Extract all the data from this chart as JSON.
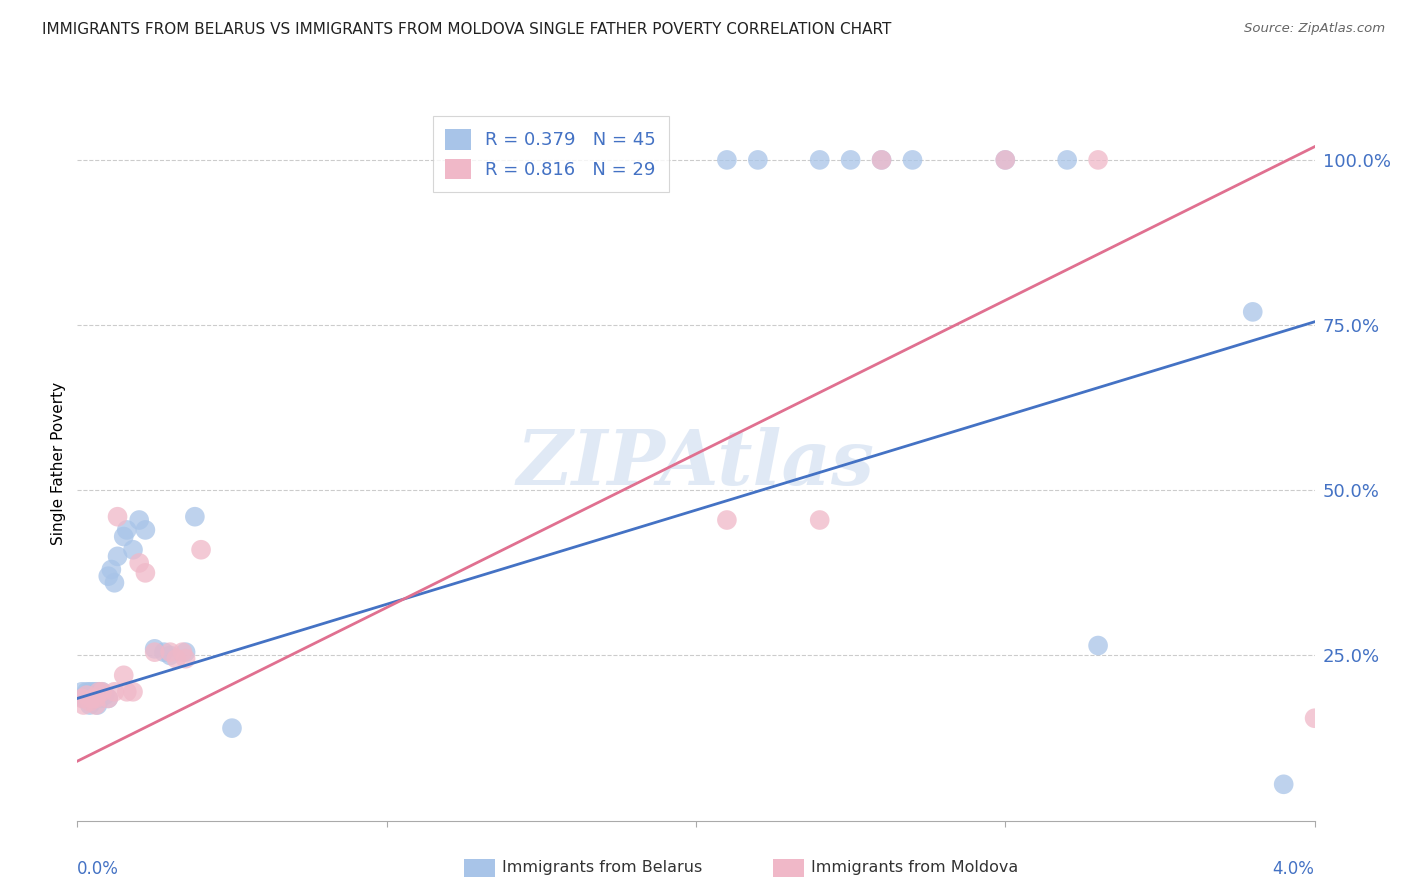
{
  "title": "IMMIGRANTS FROM BELARUS VS IMMIGRANTS FROM MOLDOVA SINGLE FATHER POVERTY CORRELATION CHART",
  "source": "Source: ZipAtlas.com",
  "ylabel": "Single Father Poverty",
  "legend_belarus": "Immigrants from Belarus",
  "legend_moldova": "Immigrants from Moldova",
  "r_belarus": 0.379,
  "n_belarus": 45,
  "r_moldova": 0.816,
  "n_moldova": 29,
  "color_belarus": "#a8c4e8",
  "color_moldova": "#f0b8c8",
  "line_color_belarus": "#4472c4",
  "line_color_moldova": "#e07090",
  "watermark": "ZIPAtlas",
  "ytick_labels": [
    "25.0%",
    "50.0%",
    "75.0%",
    "100.0%"
  ],
  "ytick_values": [
    0.25,
    0.5,
    0.75,
    1.0
  ],
  "bel_x": [
    0.00015,
    0.0002,
    0.00025,
    0.0003,
    0.0003,
    0.00035,
    0.0004,
    0.0004,
    0.00045,
    0.0005,
    0.0005,
    0.0006,
    0.0006,
    0.00065,
    0.0007,
    0.00075,
    0.0008,
    0.0009,
    0.001,
    0.001,
    0.0011,
    0.0012,
    0.0013,
    0.0015,
    0.0016,
    0.0018,
    0.002,
    0.0022,
    0.0025,
    0.0028,
    0.003,
    0.0035,
    0.0038,
    0.005,
    0.021,
    0.022,
    0.024,
    0.025,
    0.026,
    0.027,
    0.03,
    0.032,
    0.033,
    0.038,
    0.039
  ],
  "bel_y": [
    0.195,
    0.185,
    0.185,
    0.19,
    0.195,
    0.185,
    0.195,
    0.175,
    0.185,
    0.185,
    0.195,
    0.195,
    0.185,
    0.175,
    0.195,
    0.185,
    0.195,
    0.19,
    0.185,
    0.37,
    0.38,
    0.36,
    0.4,
    0.43,
    0.44,
    0.41,
    0.455,
    0.44,
    0.26,
    0.255,
    0.25,
    0.255,
    0.46,
    0.14,
    1.0,
    1.0,
    1.0,
    1.0,
    1.0,
    1.0,
    1.0,
    1.0,
    0.265,
    0.77,
    0.055
  ],
  "mol_x": [
    0.00015,
    0.0002,
    0.0003,
    0.0004,
    0.0005,
    0.0006,
    0.0006,
    0.0007,
    0.0008,
    0.001,
    0.0012,
    0.0013,
    0.0015,
    0.0016,
    0.0018,
    0.002,
    0.0022,
    0.0025,
    0.003,
    0.0032,
    0.0034,
    0.0035,
    0.004,
    0.021,
    0.024,
    0.026,
    0.03,
    0.033,
    0.04
  ],
  "mol_y": [
    0.185,
    0.175,
    0.19,
    0.18,
    0.185,
    0.185,
    0.175,
    0.195,
    0.195,
    0.185,
    0.195,
    0.46,
    0.22,
    0.195,
    0.195,
    0.39,
    0.375,
    0.255,
    0.255,
    0.245,
    0.255,
    0.245,
    0.41,
    0.455,
    0.455,
    1.0,
    1.0,
    1.0,
    0.155
  ],
  "bel_line_y0": 0.185,
  "bel_line_y1": 0.755,
  "mol_line_y0": 0.09,
  "mol_line_y1": 1.02,
  "xmin": 0.0,
  "xmax": 0.04,
  "ymin": 0.0,
  "ymax": 1.08
}
